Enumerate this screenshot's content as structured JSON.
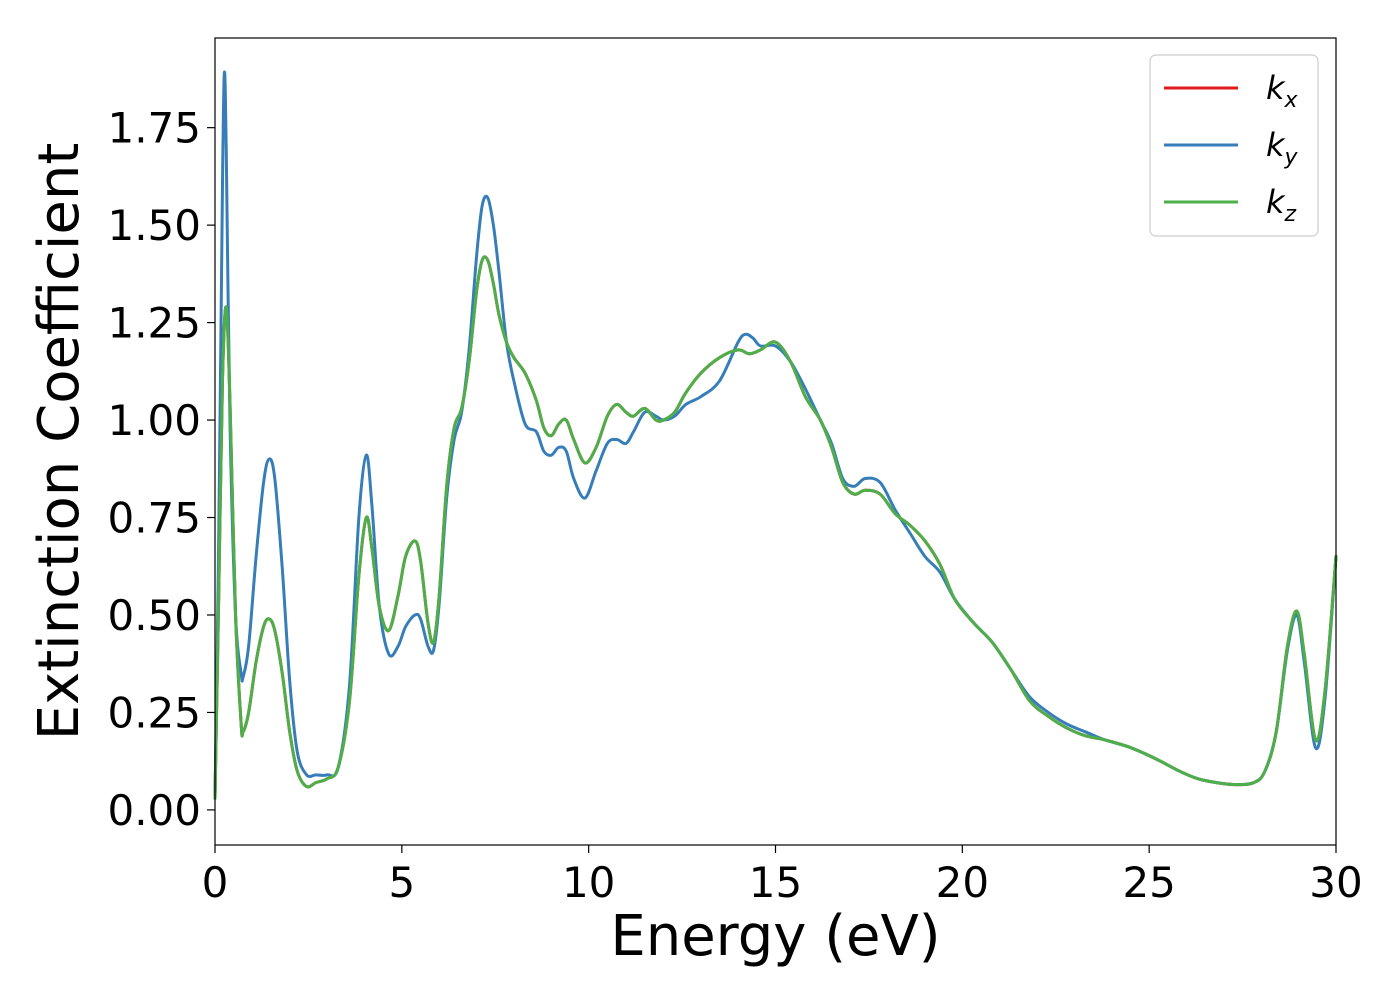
{
  "chart_data": {
    "type": "line",
    "xlabel": "Energy (eV)",
    "ylabel": "Extinction Coefficient",
    "xlim": [
      0,
      30
    ],
    "ylim": [
      -0.09,
      1.98
    ],
    "xticks": [
      0,
      5,
      10,
      15,
      20,
      25,
      30
    ],
    "xtick_labels": [
      "0",
      "5",
      "10",
      "15",
      "20",
      "25",
      "30"
    ],
    "yticks": [
      0.0,
      0.25,
      0.5,
      0.75,
      1.0,
      1.25,
      1.5,
      1.75
    ],
    "ytick_labels": [
      "0.00",
      "0.25",
      "0.50",
      "0.75",
      "1.00",
      "1.25",
      "1.50",
      "1.75"
    ],
    "grid": false,
    "legend_position": "top-right",
    "series": [
      {
        "name": "k_x",
        "label_base": "k",
        "label_sub": "x",
        "color": "#e41a1c",
        "x": [
          0,
          0.1,
          0.2,
          0.3,
          0.4,
          0.55,
          0.7,
          0.75,
          0.9,
          1.1,
          1.3,
          1.45,
          1.6,
          1.8,
          2.0,
          2.2,
          2.45,
          2.7,
          3.0,
          3.3,
          3.6,
          3.85,
          4.05,
          4.2,
          4.4,
          4.65,
          4.9,
          5.1,
          5.35,
          5.5,
          5.7,
          5.85,
          6.0,
          6.2,
          6.4,
          6.6,
          6.8,
          7.0,
          7.15,
          7.3,
          7.45,
          7.6,
          7.8,
          8.0,
          8.3,
          8.6,
          8.8,
          9.0,
          9.2,
          9.4,
          9.6,
          9.9,
          10.2,
          10.5,
          10.75,
          11.0,
          11.2,
          11.5,
          11.8,
          12.0,
          12.3,
          12.6,
          13.0,
          13.5,
          14.0,
          14.3,
          14.6,
          15.0,
          15.4,
          15.8,
          16.2,
          16.5,
          16.8,
          17.1,
          17.4,
          17.8,
          18.2,
          18.6,
          19.0,
          19.4,
          19.8,
          20.3,
          20.8,
          21.3,
          21.8,
          22.3,
          22.8,
          23.3,
          23.8,
          24.5,
          25.2,
          25.8,
          26.3,
          26.8,
          27.3,
          27.8,
          28.1,
          28.4,
          28.7,
          28.95,
          29.15,
          29.45,
          29.7,
          30.0
        ],
        "y": [
          0.03,
          0.55,
          1.1,
          1.29,
          1.05,
          0.5,
          0.22,
          0.2,
          0.25,
          0.38,
          0.47,
          0.49,
          0.46,
          0.35,
          0.2,
          0.1,
          0.06,
          0.07,
          0.08,
          0.11,
          0.28,
          0.6,
          0.75,
          0.67,
          0.52,
          0.46,
          0.55,
          0.65,
          0.69,
          0.64,
          0.48,
          0.43,
          0.55,
          0.83,
          0.98,
          1.03,
          1.15,
          1.33,
          1.41,
          1.41,
          1.35,
          1.27,
          1.2,
          1.16,
          1.12,
          1.05,
          0.98,
          0.96,
          0.99,
          1.0,
          0.95,
          0.89,
          0.93,
          1.01,
          1.04,
          1.02,
          1.01,
          1.03,
          1.0,
          1.0,
          1.02,
          1.07,
          1.12,
          1.16,
          1.18,
          1.17,
          1.18,
          1.2,
          1.15,
          1.06,
          1.0,
          0.93,
          0.84,
          0.81,
          0.82,
          0.81,
          0.76,
          0.73,
          0.69,
          0.63,
          0.54,
          0.48,
          0.43,
          0.36,
          0.28,
          0.24,
          0.21,
          0.19,
          0.18,
          0.16,
          0.13,
          0.1,
          0.08,
          0.07,
          0.065,
          0.07,
          0.1,
          0.2,
          0.42,
          0.51,
          0.4,
          0.18,
          0.3,
          0.65
        ]
      },
      {
        "name": "k_y",
        "label_base": "k",
        "label_sub": "y",
        "color": "#377eb8",
        "x": [
          0,
          0.1,
          0.2,
          0.25,
          0.3,
          0.4,
          0.55,
          0.7,
          0.75,
          0.9,
          1.1,
          1.3,
          1.45,
          1.6,
          1.8,
          2.0,
          2.2,
          2.45,
          2.7,
          3.0,
          3.3,
          3.6,
          3.85,
          4.05,
          4.2,
          4.4,
          4.65,
          4.9,
          5.1,
          5.35,
          5.5,
          5.7,
          5.85,
          6.0,
          6.2,
          6.4,
          6.6,
          6.8,
          7.0,
          7.15,
          7.3,
          7.45,
          7.6,
          7.8,
          8.0,
          8.3,
          8.6,
          8.8,
          9.0,
          9.2,
          9.4,
          9.6,
          9.9,
          10.2,
          10.5,
          10.75,
          11.0,
          11.2,
          11.5,
          11.8,
          12.0,
          12.3,
          12.6,
          13.0,
          13.5,
          14.0,
          14.2,
          14.4,
          14.6,
          15.0,
          15.4,
          15.8,
          16.2,
          16.5,
          16.8,
          17.1,
          17.4,
          17.8,
          18.2,
          18.6,
          19.0,
          19.4,
          19.8,
          20.3,
          20.8,
          21.3,
          21.8,
          22.3,
          22.8,
          23.3,
          23.8,
          24.5,
          25.2,
          25.8,
          26.3,
          26.8,
          27.3,
          27.8,
          28.1,
          28.4,
          28.7,
          28.95,
          29.15,
          29.45,
          29.7,
          30.0
        ],
        "y": [
          0.03,
          0.7,
          1.6,
          1.89,
          1.7,
          1.0,
          0.5,
          0.35,
          0.34,
          0.42,
          0.65,
          0.84,
          0.9,
          0.85,
          0.62,
          0.33,
          0.15,
          0.09,
          0.09,
          0.09,
          0.11,
          0.32,
          0.75,
          0.91,
          0.78,
          0.52,
          0.4,
          0.42,
          0.47,
          0.5,
          0.49,
          0.42,
          0.41,
          0.53,
          0.8,
          0.95,
          1.02,
          1.18,
          1.42,
          1.55,
          1.57,
          1.5,
          1.38,
          1.2,
          1.1,
          0.99,
          0.97,
          0.92,
          0.91,
          0.93,
          0.92,
          0.85,
          0.8,
          0.87,
          0.94,
          0.95,
          0.94,
          0.97,
          1.02,
          1.01,
          1.0,
          1.01,
          1.04,
          1.06,
          1.1,
          1.2,
          1.22,
          1.21,
          1.19,
          1.19,
          1.15,
          1.08,
          1.0,
          0.94,
          0.85,
          0.83,
          0.85,
          0.84,
          0.77,
          0.71,
          0.65,
          0.61,
          0.54,
          0.48,
          0.43,
          0.36,
          0.29,
          0.25,
          0.22,
          0.2,
          0.18,
          0.16,
          0.13,
          0.1,
          0.08,
          0.07,
          0.065,
          0.07,
          0.1,
          0.2,
          0.41,
          0.5,
          0.38,
          0.16,
          0.28,
          0.65
        ]
      },
      {
        "name": "k_z",
        "label_base": "k",
        "label_sub": "z",
        "color": "#4daf4a",
        "x": [
          0,
          0.1,
          0.2,
          0.3,
          0.4,
          0.55,
          0.7,
          0.75,
          0.9,
          1.1,
          1.3,
          1.45,
          1.6,
          1.8,
          2.0,
          2.2,
          2.45,
          2.7,
          3.0,
          3.3,
          3.6,
          3.85,
          4.05,
          4.2,
          4.4,
          4.65,
          4.9,
          5.1,
          5.35,
          5.5,
          5.7,
          5.85,
          6.0,
          6.2,
          6.4,
          6.6,
          6.8,
          7.0,
          7.15,
          7.3,
          7.45,
          7.6,
          7.8,
          8.0,
          8.3,
          8.6,
          8.8,
          9.0,
          9.2,
          9.4,
          9.6,
          9.9,
          10.2,
          10.5,
          10.75,
          11.0,
          11.2,
          11.5,
          11.8,
          12.0,
          12.3,
          12.6,
          13.0,
          13.5,
          14.0,
          14.3,
          14.6,
          15.0,
          15.4,
          15.8,
          16.2,
          16.5,
          16.8,
          17.1,
          17.4,
          17.8,
          18.2,
          18.6,
          19.0,
          19.4,
          19.8,
          20.3,
          20.8,
          21.3,
          21.8,
          22.3,
          22.8,
          23.3,
          23.8,
          24.5,
          25.2,
          25.8,
          26.3,
          26.8,
          27.3,
          27.8,
          28.1,
          28.4,
          28.7,
          28.95,
          29.15,
          29.45,
          29.7,
          30.0
        ],
        "y": [
          0.03,
          0.55,
          1.1,
          1.29,
          1.05,
          0.5,
          0.22,
          0.2,
          0.25,
          0.38,
          0.47,
          0.49,
          0.46,
          0.35,
          0.2,
          0.1,
          0.06,
          0.07,
          0.08,
          0.11,
          0.28,
          0.6,
          0.75,
          0.67,
          0.52,
          0.46,
          0.55,
          0.65,
          0.69,
          0.64,
          0.48,
          0.43,
          0.55,
          0.83,
          0.98,
          1.03,
          1.15,
          1.33,
          1.41,
          1.41,
          1.35,
          1.27,
          1.2,
          1.16,
          1.12,
          1.05,
          0.98,
          0.96,
          0.99,
          1.0,
          0.95,
          0.89,
          0.93,
          1.01,
          1.04,
          1.02,
          1.01,
          1.03,
          1.0,
          1.0,
          1.02,
          1.07,
          1.12,
          1.16,
          1.18,
          1.17,
          1.18,
          1.2,
          1.15,
          1.06,
          1.0,
          0.93,
          0.84,
          0.81,
          0.82,
          0.81,
          0.76,
          0.73,
          0.69,
          0.63,
          0.54,
          0.48,
          0.43,
          0.36,
          0.28,
          0.24,
          0.21,
          0.19,
          0.18,
          0.16,
          0.13,
          0.1,
          0.08,
          0.07,
          0.065,
          0.07,
          0.1,
          0.2,
          0.42,
          0.51,
          0.4,
          0.18,
          0.3,
          0.65
        ]
      }
    ]
  }
}
